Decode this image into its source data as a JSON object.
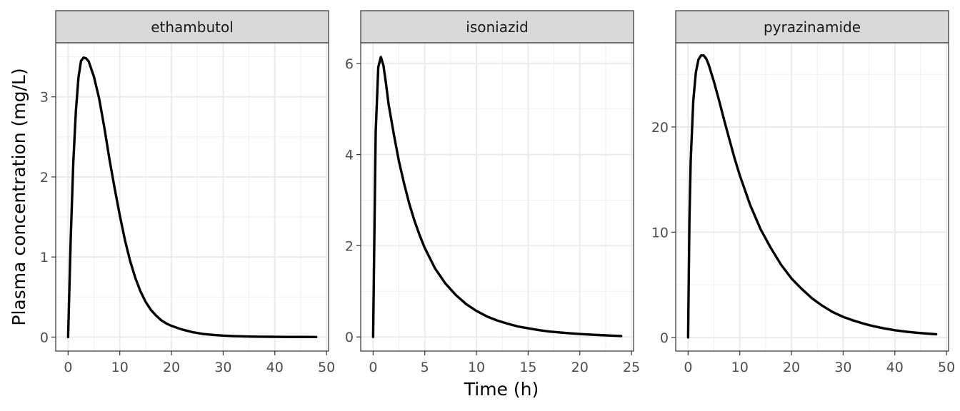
{
  "chart_data": {
    "type": "line",
    "xlabel": "Time (h)",
    "ylabel": "Plasma concentration (mg/L)",
    "grid": true,
    "line_color": "#000000",
    "strip_fill": "#d9d9d9",
    "panels": [
      {
        "name": "ethambutol",
        "xlim": [
          -2.4,
          50.4
        ],
        "ylim": [
          -0.175,
          3.675
        ],
        "x_ticks": [
          0,
          10,
          20,
          30,
          40,
          50
        ],
        "y_ticks": [
          0,
          1,
          2,
          3
        ],
        "x": [
          0,
          0.5,
          1,
          1.5,
          2,
          2.5,
          3,
          3.5,
          4,
          5,
          6,
          7,
          8,
          9,
          10,
          11,
          12,
          13,
          14,
          15,
          16,
          17,
          18,
          19,
          20,
          22,
          24,
          26,
          28,
          30,
          32,
          34,
          36,
          38,
          40,
          42,
          44,
          46,
          48
        ],
        "y": [
          0,
          1.22,
          2.18,
          2.82,
          3.24,
          3.45,
          3.49,
          3.48,
          3.44,
          3.25,
          2.98,
          2.62,
          2.22,
          1.86,
          1.52,
          1.21,
          0.95,
          0.74,
          0.57,
          0.44,
          0.34,
          0.27,
          0.21,
          0.17,
          0.14,
          0.095,
          0.062,
          0.04,
          0.027,
          0.018,
          0.012,
          0.008,
          0.005,
          0.004,
          0.003,
          0.002,
          0.001,
          0.001,
          0
        ]
      },
      {
        "name": "isoniazid",
        "xlim": [
          -1.2,
          25.2
        ],
        "ylim": [
          -0.31,
          6.45
        ],
        "x_ticks": [
          0,
          5,
          10,
          15,
          20,
          25
        ],
        "y_ticks": [
          0,
          2,
          4,
          6
        ],
        "x": [
          0,
          0.25,
          0.5,
          0.75,
          1,
          1.25,
          1.5,
          2,
          2.5,
          3,
          3.5,
          4,
          4.5,
          5,
          6,
          7,
          8,
          9,
          10,
          11,
          12,
          13,
          14,
          15,
          16,
          17,
          18,
          19,
          20,
          21,
          22,
          23,
          24
        ],
        "y": [
          0,
          4.5,
          5.92,
          6.14,
          5.95,
          5.55,
          5.1,
          4.45,
          3.85,
          3.36,
          2.92,
          2.55,
          2.23,
          1.95,
          1.5,
          1.17,
          0.92,
          0.72,
          0.57,
          0.45,
          0.36,
          0.29,
          0.23,
          0.19,
          0.15,
          0.12,
          0.1,
          0.08,
          0.065,
          0.05,
          0.04,
          0.03,
          0.02
        ]
      },
      {
        "name": "pyrazinamide",
        "xlim": [
          -2.4,
          50.4
        ],
        "ylim": [
          -1.3,
          28.0
        ],
        "x_ticks": [
          0,
          10,
          20,
          30,
          40,
          50
        ],
        "y_ticks": [
          0,
          10,
          20
        ],
        "x": [
          0,
          0.25,
          0.5,
          1,
          1.5,
          2,
          2.5,
          3,
          3.5,
          4,
          5,
          6,
          7,
          8,
          9,
          10,
          12,
          14,
          16,
          18,
          20,
          22,
          24,
          26,
          28,
          30,
          32,
          34,
          36,
          38,
          40,
          42,
          44,
          46,
          48
        ],
        "y": [
          0,
          11.0,
          16.8,
          22.5,
          25.2,
          26.4,
          26.8,
          26.8,
          26.5,
          25.9,
          24.3,
          22.5,
          20.6,
          18.8,
          17.0,
          15.4,
          12.6,
          10.3,
          8.5,
          6.9,
          5.6,
          4.6,
          3.7,
          3.0,
          2.4,
          1.95,
          1.6,
          1.3,
          1.05,
          0.85,
          0.68,
          0.55,
          0.45,
          0.37,
          0.3
        ]
      }
    ]
  }
}
